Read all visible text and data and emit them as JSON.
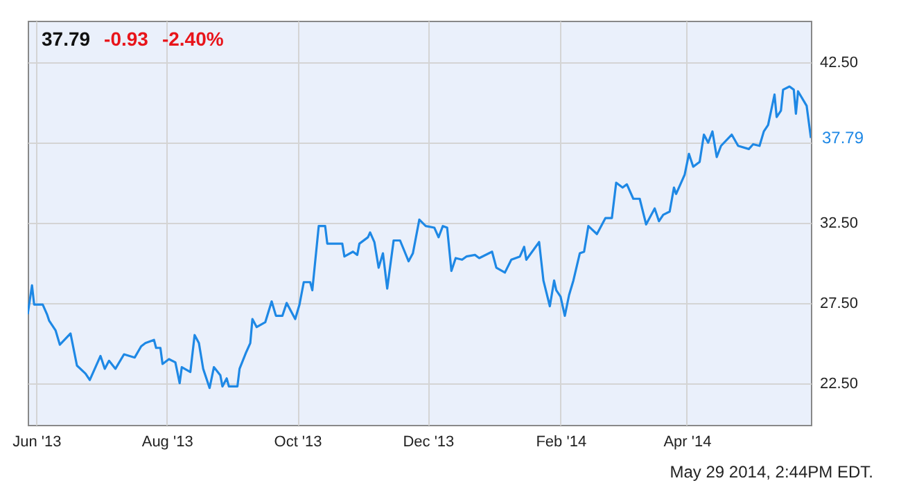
{
  "chart_data": {
    "type": "line",
    "title": "37.79",
    "annotations": [
      "-0.93",
      "-2.40%",
      "May 29 2014, 2:44PM EDT.",
      {
        "text": "37.79",
        "x": "2014-05-29",
        "y": 37.79
      }
    ],
    "x": [
      "2013-05-28",
      "2013-05-30",
      "2013-05-31",
      "2013-06-04",
      "2013-06-06",
      "2013-06-07",
      "2013-06-10",
      "2013-06-12",
      "2013-06-17",
      "2013-06-20",
      "2013-06-24",
      "2013-06-26",
      "2013-07-01",
      "2013-07-03",
      "2013-07-05",
      "2013-07-08",
      "2013-07-12",
      "2013-07-17",
      "2013-07-20",
      "2013-07-22",
      "2013-07-26",
      "2013-07-27",
      "2013-07-29",
      "2013-07-30",
      "2013-08-02",
      "2013-08-05",
      "2013-08-07",
      "2013-08-08",
      "2013-08-12",
      "2013-08-14",
      "2013-08-16",
      "2013-08-18",
      "2013-08-21",
      "2013-08-23",
      "2013-08-26",
      "2013-08-27",
      "2013-08-29",
      "2013-08-30",
      "2013-09-03",
      "2013-09-04",
      "2013-09-07",
      "2013-09-09",
      "2013-09-10",
      "2013-09-12",
      "2013-09-16",
      "2013-09-19",
      "2013-09-21",
      "2013-09-24",
      "2013-09-26",
      "2013-09-30",
      "2013-10-02",
      "2013-10-04",
      "2013-10-07",
      "2013-10-08",
      "2013-10-11",
      "2013-10-14",
      "2013-10-15",
      "2013-10-22",
      "2013-10-23",
      "2013-10-27",
      "2013-10-29",
      "2013-10-30",
      "2013-11-03",
      "2013-11-04",
      "2013-11-06",
      "2013-11-08",
      "2013-11-10",
      "2013-11-12",
      "2013-11-15",
      "2013-11-18",
      "2013-11-22",
      "2013-11-24",
      "2013-11-27",
      "2013-11-30",
      "2013-12-04",
      "2013-12-06",
      "2013-12-08",
      "2013-12-10",
      "2013-12-12",
      "2013-12-14",
      "2013-12-17",
      "2013-12-19",
      "2013-12-23",
      "2013-12-25",
      "2013-12-31",
      "2014-01-02",
      "2014-01-06",
      "2014-01-09",
      "2014-01-13",
      "2014-01-15",
      "2014-01-16",
      "2014-01-22",
      "2014-01-24",
      "2014-01-27",
      "2014-01-29",
      "2014-01-30",
      "2014-02-01",
      "2014-02-03",
      "2014-02-05",
      "2014-02-07",
      "2014-02-10",
      "2014-02-12",
      "2014-02-14",
      "2014-02-18",
      "2014-02-22",
      "2014-02-25",
      "2014-02-27",
      "2014-03-02",
      "2014-03-04",
      "2014-03-07",
      "2014-03-10",
      "2014-03-13",
      "2014-03-17",
      "2014-03-19",
      "2014-03-21",
      "2014-03-24",
      "2014-03-26",
      "2014-03-27",
      "2014-03-31",
      "2014-04-02",
      "2014-04-04",
      "2014-04-07",
      "2014-04-09",
      "2014-04-11",
      "2014-04-13",
      "2014-04-15",
      "2014-04-17",
      "2014-04-22",
      "2014-04-25",
      "2014-04-30",
      "2014-05-02",
      "2014-05-05",
      "2014-05-07",
      "2014-05-09",
      "2014-05-12",
      "2014-05-13",
      "2014-05-15",
      "2014-05-16",
      "2014-05-19",
      "2014-05-21",
      "2014-05-22",
      "2014-05-23",
      "2014-05-27",
      "2014-05-29"
    ],
    "series": [
      {
        "color": "#1e88e5",
        "values": [
          26.8,
          28.6,
          27.4,
          27.4,
          26.8,
          26.4,
          25.8,
          24.9,
          25.6,
          23.6,
          23.1,
          22.7,
          24.2,
          23.4,
          23.9,
          23.4,
          24.3,
          24.1,
          24.8,
          25.0,
          25.2,
          24.7,
          24.7,
          23.7,
          24.0,
          23.8,
          22.5,
          23.5,
          23.2,
          25.5,
          25.0,
          23.4,
          22.2,
          23.5,
          23.0,
          22.3,
          22.8,
          22.3,
          22.3,
          23.4,
          24.4,
          25.0,
          26.5,
          26.0,
          26.3,
          27.6,
          26.7,
          26.7,
          27.5,
          26.5,
          27.4,
          28.8,
          28.8,
          28.3,
          32.3,
          32.3,
          31.2,
          31.2,
          30.4,
          30.7,
          30.5,
          31.2,
          31.6,
          31.9,
          31.3,
          29.7,
          30.6,
          28.4,
          31.4,
          31.4,
          30.1,
          30.6,
          32.7,
          32.3,
          32.2,
          31.6,
          32.3,
          32.2,
          29.5,
          30.3,
          30.2,
          30.4,
          30.5,
          30.3,
          30.7,
          29.7,
          29.4,
          30.2,
          30.4,
          31.0,
          30.2,
          31.3,
          28.9,
          27.3,
          28.9,
          28.3,
          27.9,
          26.7,
          28.0,
          28.9,
          30.6,
          30.7,
          32.3,
          31.8,
          32.8,
          32.8,
          35.0,
          34.7,
          34.9,
          34.0,
          34.0,
          32.4,
          33.4,
          32.6,
          33.0,
          33.2,
          34.7,
          34.3,
          35.5,
          36.8,
          36.0,
          36.3,
          38.0,
          37.5,
          38.2,
          36.6,
          37.3,
          38.0,
          37.3,
          37.1,
          37.4,
          37.3,
          38.2,
          38.6,
          40.5,
          39.1,
          39.5,
          40.8,
          41.0,
          40.8,
          39.3,
          40.7,
          39.8,
          37.79
        ]
      }
    ],
    "xlim": [
      "2013-05-28",
      "2014-05-29"
    ],
    "xticks": [
      {
        "value": "2013-06-01",
        "label": "Jun '13"
      },
      {
        "value": "2013-08-01",
        "label": "Aug '13"
      },
      {
        "value": "2013-10-01",
        "label": "Oct '13"
      },
      {
        "value": "2013-12-01",
        "label": "Dec '13"
      },
      {
        "value": "2014-02-01",
        "label": "Feb '14"
      },
      {
        "value": "2014-04-01",
        "label": "Apr '14"
      }
    ],
    "ylim": [
      19.9,
      45.1
    ],
    "yticks": [
      {
        "value": 22.5,
        "label": "22.50"
      },
      {
        "value": 27.5,
        "label": "27.50"
      },
      {
        "value": 32.5,
        "label": "32.50"
      },
      {
        "value": 37.5,
        "label": null
      },
      {
        "value": 42.5,
        "label": "42.50"
      }
    ],
    "grid": true,
    "line_style": "solid"
  }
}
